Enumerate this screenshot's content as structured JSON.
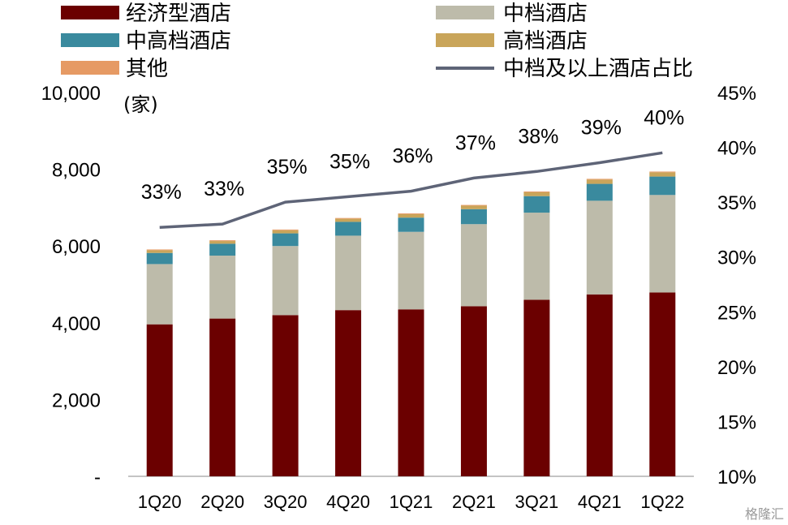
{
  "chart_data": {
    "type": "bar",
    "stacked": true,
    "categories": [
      "1Q20",
      "2Q20",
      "3Q20",
      "4Q20",
      "1Q21",
      "2Q21",
      "3Q21",
      "4Q21",
      "1Q22"
    ],
    "y_unit": "(家)",
    "ylim": [
      0,
      10000
    ],
    "y_ticks": [
      "-",
      "2,000",
      "4,000",
      "6,000",
      "8,000",
      "10,000"
    ],
    "y_tick_values": [
      0,
      2000,
      4000,
      6000,
      8000,
      10000
    ],
    "y2lim": [
      0.1,
      0.45
    ],
    "y2_ticks": [
      "10%",
      "15%",
      "20%",
      "25%",
      "30%",
      "35%",
      "40%",
      "45%"
    ],
    "y2_tick_values": [
      0.1,
      0.15,
      0.2,
      0.25,
      0.3,
      0.35,
      0.4,
      0.45
    ],
    "series": [
      {
        "name": "经济型酒店",
        "color": "#6B0000",
        "values": [
          3960,
          4110,
          4200,
          4330,
          4350,
          4430,
          4600,
          4740,
          4790
        ]
      },
      {
        "name": "中档酒店",
        "color": "#BDBBAA",
        "values": [
          1570,
          1640,
          1800,
          1940,
          2020,
          2140,
          2270,
          2440,
          2540
        ]
      },
      {
        "name": "中高档酒店",
        "color": "#3A8A9E",
        "values": [
          290,
          310,
          330,
          360,
          370,
          390,
          430,
          440,
          480
        ]
      },
      {
        "name": "高档酒店",
        "color": "#C9A55A",
        "values": [
          70,
          70,
          80,
          80,
          90,
          90,
          100,
          110,
          110
        ]
      },
      {
        "name": "其他",
        "color": "#E69A64",
        "values": [
          20,
          20,
          20,
          20,
          20,
          20,
          20,
          20,
          20
        ]
      }
    ],
    "line": {
      "name": "中档及以上酒店占比",
      "color": "#5E6477",
      "axis": "right",
      "values": [
        0.327,
        0.33,
        0.35,
        0.355,
        0.36,
        0.372,
        0.378,
        0.386,
        0.395
      ],
      "labels": [
        "33%",
        "33%",
        "35%",
        "35%",
        "36%",
        "37%",
        "38%",
        "39%",
        "40%"
      ]
    },
    "legend_position": "top"
  },
  "watermark": "格隆汇"
}
